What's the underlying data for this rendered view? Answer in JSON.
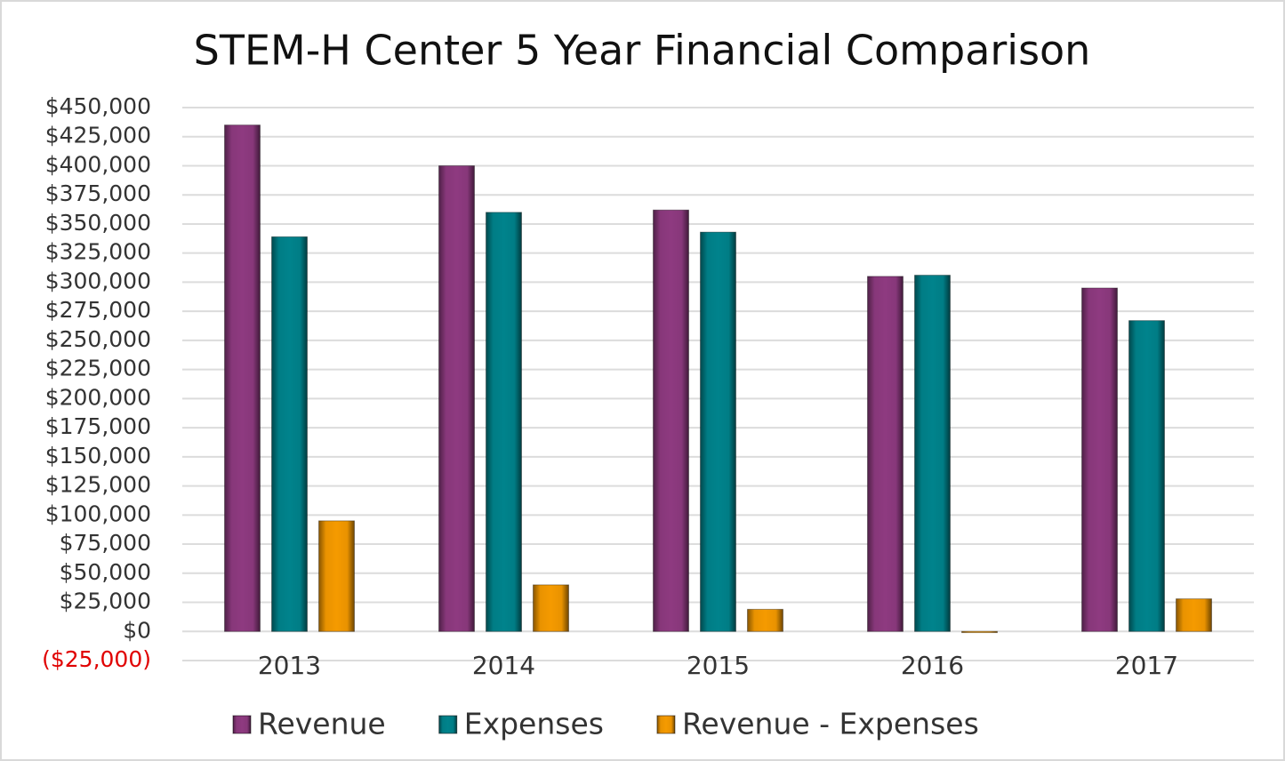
{
  "chart_data": {
    "type": "bar",
    "title": "STEM-H Center 5 Year Financial Comparison",
    "categories": [
      "2013",
      "2014",
      "2015",
      "2016",
      "2017"
    ],
    "series": [
      {
        "name": "Revenue",
        "color": "#8e3a80",
        "values": [
          435000,
          400000,
          362000,
          305000,
          295000
        ]
      },
      {
        "name": "Expenses",
        "color": "#00838c",
        "values": [
          339000,
          360000,
          343000,
          306000,
          267000
        ]
      },
      {
        "name": "Revenue - Expenses",
        "color": "#f59a00",
        "values": [
          95000,
          40000,
          19000,
          -1000,
          28000
        ]
      }
    ],
    "ylim": [
      -25000,
      450000
    ],
    "yticks": [
      {
        "value": -25000,
        "label": "($25,000)"
      },
      {
        "value": 0,
        "label": "$0"
      },
      {
        "value": 25000,
        "label": "$25,000"
      },
      {
        "value": 50000,
        "label": "$50,000"
      },
      {
        "value": 75000,
        "label": "$75,000"
      },
      {
        "value": 100000,
        "label": "$100,000"
      },
      {
        "value": 125000,
        "label": "$125,000"
      },
      {
        "value": 150000,
        "label": "$150,000"
      },
      {
        "value": 175000,
        "label": "$175,000"
      },
      {
        "value": 200000,
        "label": "$200,000"
      },
      {
        "value": 225000,
        "label": "$225,000"
      },
      {
        "value": 250000,
        "label": "$250,000"
      },
      {
        "value": 275000,
        "label": "$275,000"
      },
      {
        "value": 300000,
        "label": "$300,000"
      },
      {
        "value": 325000,
        "label": "$325,000"
      },
      {
        "value": 350000,
        "label": "$350,000"
      },
      {
        "value": 375000,
        "label": "$375,000"
      },
      {
        "value": 400000,
        "label": "$400,000"
      },
      {
        "value": 425000,
        "label": "$425,000"
      },
      {
        "value": 450000,
        "label": "$450,000"
      }
    ],
    "negative_tick_color": "#e00000",
    "grid": true,
    "legend": "bottom"
  }
}
